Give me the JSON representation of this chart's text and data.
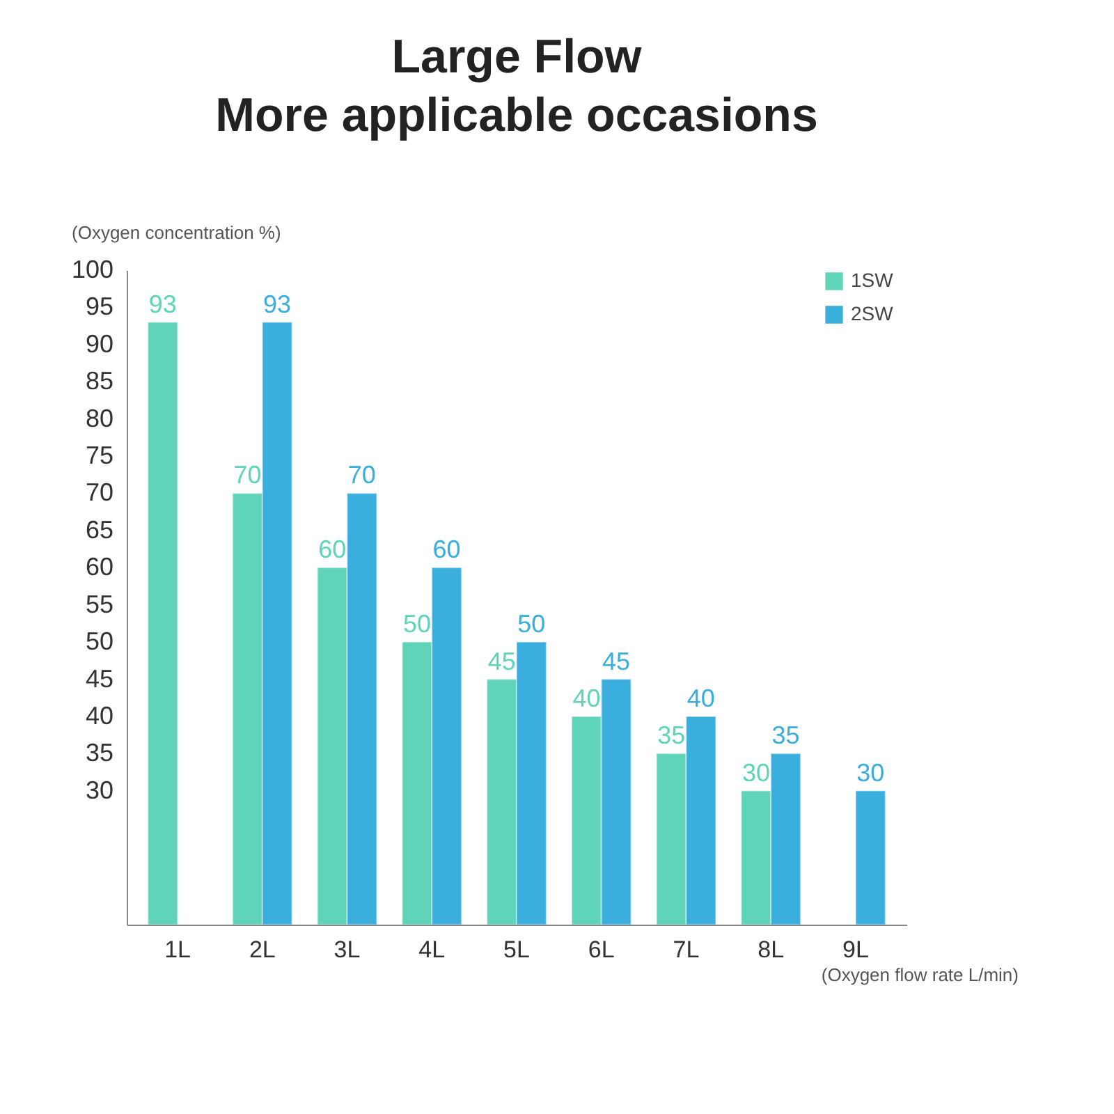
{
  "chart_data": {
    "type": "bar",
    "title": "Large Flow",
    "subtitle": "More applicable occasions",
    "xlabel": "(Oxygen flow rate L/min)",
    "ylabel": "(Oxygen concentration %)",
    "categories": [
      "1L",
      "2L",
      "3L",
      "4L",
      "5L",
      "6L",
      "7L",
      "8L",
      "9L"
    ],
    "series": [
      {
        "name": "1SW",
        "color": "#5fd4b8",
        "values": [
          93,
          70,
          60,
          50,
          45,
          40,
          35,
          30,
          null
        ]
      },
      {
        "name": "2SW",
        "color": "#3aaedc",
        "values": [
          null,
          93,
          70,
          60,
          50,
          45,
          40,
          35,
          30
        ]
      }
    ],
    "ylim": [
      12,
      100
    ],
    "yticks": [
      30,
      35,
      40,
      45,
      50,
      55,
      60,
      65,
      70,
      75,
      80,
      85,
      90,
      95,
      100
    ],
    "data_labels": true,
    "legend": "right",
    "grid": false
  }
}
